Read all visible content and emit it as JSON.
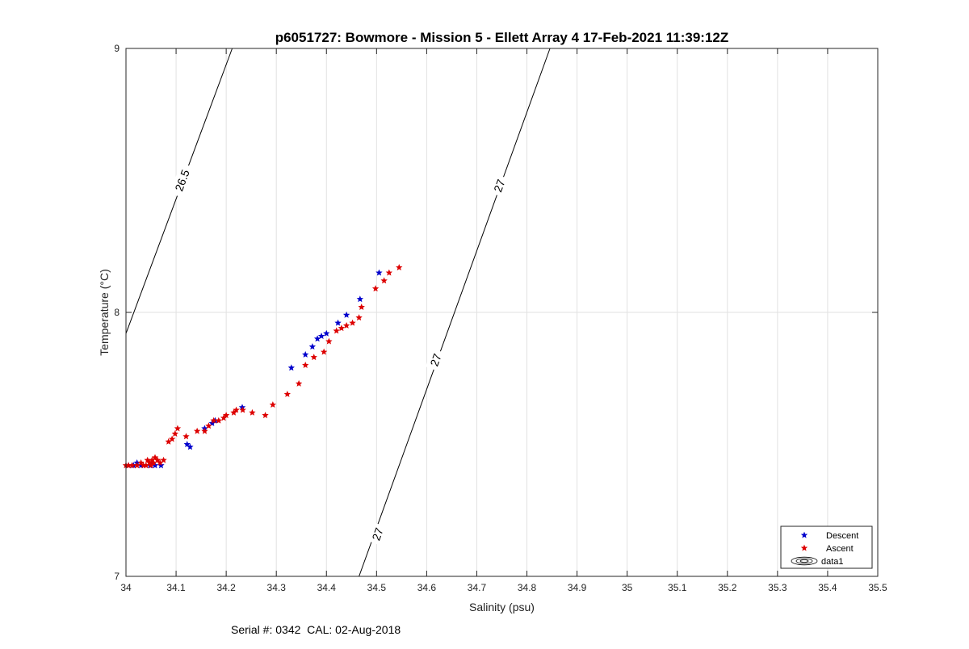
{
  "footer": {
    "text": "Serial #: 0342  CAL: 02-Aug-2018"
  },
  "chart_data": {
    "type": "scatter",
    "title": "p6051727: Bowmore - Mission 5 - Ellett Array 4 17-Feb-2021 11:39:12Z",
    "xlabel": "Salinity (psu)",
    "ylabel": "Temperature (°C)",
    "xlim": [
      34,
      35.5
    ],
    "ylim": [
      7,
      9
    ],
    "xticks": [
      34,
      34.1,
      34.2,
      34.3,
      34.4,
      34.5,
      34.6,
      34.7,
      34.8,
      34.9,
      35,
      35.1,
      35.2,
      35.3,
      35.4,
      35.5
    ],
    "xtick_labels": [
      "34",
      "34.1",
      "34.2",
      "34.3",
      "34.4",
      "34.5",
      "34.6",
      "34.7",
      "34.8",
      "34.9",
      "35",
      "35.1",
      "35.2",
      "35.3",
      "35.4",
      "35.5"
    ],
    "yticks": [
      7,
      8,
      9
    ],
    "ytick_labels": [
      "7",
      "8",
      "9"
    ],
    "grid": true,
    "legend": {
      "position": "bottom-right",
      "entries": [
        "Descent",
        "Ascent",
        "data1"
      ]
    },
    "colors": {
      "descent": "#0000cc",
      "ascent": "#dd0000",
      "contour": "#000000",
      "grid": "#e2e2e2"
    },
    "series": [
      {
        "name": "Descent",
        "marker": "pentagram",
        "x": [
          34.505,
          34.467,
          34.44,
          34.423,
          34.4,
          34.39,
          34.382,
          34.372,
          34.358,
          34.33,
          34.232,
          34.178,
          34.172,
          34.157,
          34.128,
          34.122,
          34.07,
          34.058,
          34.053,
          34.048,
          34.03,
          34.022,
          34.015,
          34.005
        ],
        "y": [
          8.15,
          8.05,
          7.99,
          7.96,
          7.92,
          7.91,
          7.9,
          7.87,
          7.84,
          7.79,
          7.64,
          7.59,
          7.58,
          7.56,
          7.49,
          7.5,
          7.42,
          7.42,
          7.43,
          7.42,
          7.42,
          7.43,
          7.42,
          7.42
        ]
      },
      {
        "name": "Ascent",
        "marker": "pentagram",
        "x": [
          34.545,
          34.525,
          34.515,
          34.498,
          34.47,
          34.465,
          34.452,
          34.44,
          34.43,
          34.42,
          34.405,
          34.395,
          34.375,
          34.358,
          34.345,
          34.322,
          34.293,
          34.278,
          34.252,
          34.233,
          34.22,
          34.215,
          34.2,
          34.195,
          34.185,
          34.175,
          34.165,
          34.157,
          34.142,
          34.12,
          34.103,
          34.098,
          34.092,
          34.085,
          34.075,
          34.068,
          34.063,
          34.058,
          34.055,
          34.052,
          34.05,
          34.047,
          34.043,
          34.04,
          34.035,
          34.03,
          34.022,
          34.012,
          34.005,
          34.0
        ],
        "y": [
          8.17,
          8.15,
          8.12,
          8.09,
          8.02,
          7.98,
          7.96,
          7.95,
          7.94,
          7.93,
          7.89,
          7.85,
          7.83,
          7.8,
          7.73,
          7.69,
          7.65,
          7.61,
          7.62,
          7.63,
          7.63,
          7.62,
          7.61,
          7.6,
          7.59,
          7.59,
          7.57,
          7.55,
          7.55,
          7.53,
          7.56,
          7.54,
          7.52,
          7.51,
          7.44,
          7.43,
          7.44,
          7.45,
          7.43,
          7.44,
          7.42,
          7.43,
          7.44,
          7.42,
          7.42,
          7.43,
          7.42,
          7.42,
          7.42,
          7.42
        ]
      }
    ],
    "contours": [
      {
        "level": "26.5",
        "x": [
          34.0,
          34.212
        ],
        "y": [
          7.92,
          9.0
        ],
        "labels": [
          {
            "text": "26.5",
            "x": 34.112,
            "y": 8.5
          }
        ]
      },
      {
        "level": "27",
        "x": [
          34.465,
          34.846
        ],
        "y": [
          7.0,
          9.0
        ],
        "labels": [
          {
            "text": "27",
            "x": 34.502,
            "y": 7.16
          },
          {
            "text": "27",
            "x": 34.618,
            "y": 7.82
          },
          {
            "text": "27",
            "x": 34.745,
            "y": 8.48
          }
        ]
      }
    ]
  }
}
